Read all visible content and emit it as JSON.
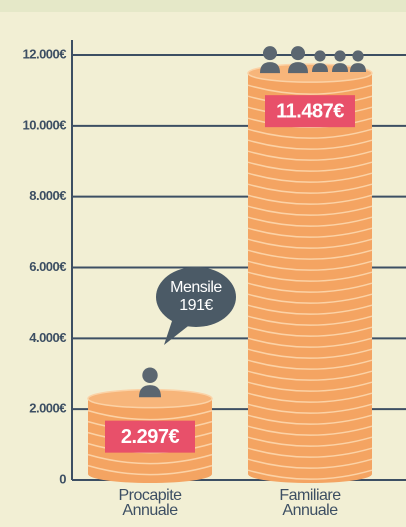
{
  "chart_data": {
    "type": "coinbar",
    "categories": [
      "Procapite Annuale",
      "Familiare Annuale"
    ],
    "values": [
      2297,
      11487
    ],
    "value_labels": [
      "2.297€",
      "11.487€"
    ],
    "color": "#f4a462",
    "ylim": [
      0,
      12000
    ],
    "yticks": [
      0,
      {
        "value": 2000,
        "label": "2.000€"
      },
      {
        "value": 4000,
        "label": "4.000€"
      },
      {
        "value": 6000,
        "label": "6.000€"
      },
      {
        "value": 8000,
        "label": "8.000€"
      },
      {
        "value": 10000,
        "label": "10.000€"
      },
      {
        "value": 12000,
        "label": "12.000€"
      }
    ],
    "grid": true,
    "annotations": [
      {
        "text": "Mensile",
        "value": 191,
        "value_label": "191€"
      }
    ]
  }
}
